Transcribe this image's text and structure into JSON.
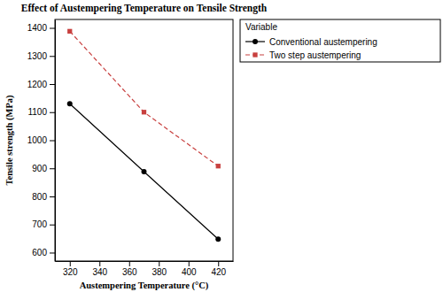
{
  "chart_data": {
    "type": "line",
    "title": "Effect of Austempering Temperature on Tensile Strength",
    "x_label": "Austempering Temperature (°C)",
    "y_label": "Tensile strength (MPa)",
    "legend_title": "Variable",
    "x": [
      320,
      370,
      420
    ],
    "series": [
      {
        "name": "Conventional austempering",
        "color": "#000000",
        "marker": "circle",
        "line_style": "solid",
        "values": [
          1130,
          888,
          648
        ]
      },
      {
        "name": "Two step austempering",
        "color": "#c8403f",
        "marker": "square",
        "line_style": "dashed",
        "values": [
          1388,
          1100,
          908
        ]
      }
    ],
    "xlim": [
      310,
      430
    ],
    "xticks": [
      320,
      340,
      360,
      380,
      400,
      420
    ],
    "ylim": [
      570,
      1430
    ],
    "yticks": [
      600,
      700,
      800,
      900,
      1000,
      1100,
      1200,
      1300,
      1400
    ],
    "grid": false,
    "legend": "right"
  }
}
